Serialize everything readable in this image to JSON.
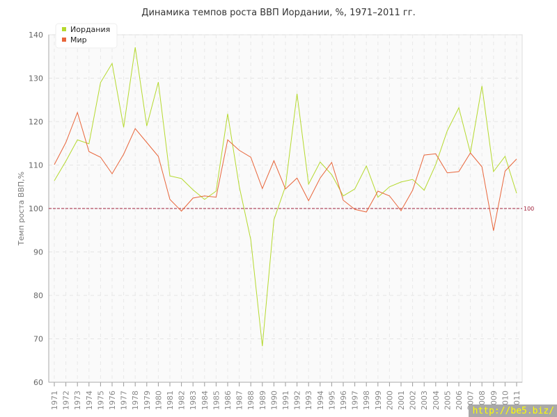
{
  "chart_data": {
    "type": "line",
    "title": "Динамика темпов роста ВВП Иордании, %, 1971–2011 гг.",
    "xlabel": "",
    "ylabel": "Темп роста ВВП,%",
    "ylim": [
      60,
      140
    ],
    "yticks": [
      60,
      70,
      80,
      90,
      100,
      110,
      120,
      130,
      140
    ],
    "grid": true,
    "legend": "top-left",
    "x": [
      1971,
      1972,
      1973,
      1974,
      1975,
      1976,
      1977,
      1978,
      1979,
      1980,
      1981,
      1982,
      1983,
      1984,
      1985,
      1986,
      1987,
      1988,
      1989,
      1990,
      1991,
      1992,
      1993,
      1994,
      1995,
      1996,
      1997,
      1998,
      1999,
      2000,
      2001,
      2002,
      2003,
      2004,
      2005,
      2006,
      2007,
      2008,
      2009,
      2010,
      2011
    ],
    "series": [
      {
        "name": "Иордания",
        "color": "#b5d92e",
        "values": [
          106.4,
          110.9,
          115.8,
          114.9,
          129,
          133.4,
          118.7,
          137.1,
          119,
          129.1,
          107.5,
          106.9,
          104.3,
          102.1,
          104,
          121.8,
          105.1,
          92.8,
          68.3,
          97.4,
          105.1,
          126.4,
          105.6,
          110.7,
          107.8,
          102.9,
          104.5,
          109.8,
          102.6,
          105,
          106.1,
          106.7,
          104.2,
          110.1,
          117.9,
          123.2,
          112.8,
          128.2,
          108.5,
          112,
          103.5
        ]
      },
      {
        "name": "Мир",
        "color": "#e8653a",
        "values": [
          110.1,
          115.2,
          122.1,
          113.1,
          111.8,
          108,
          112.5,
          118.4,
          115.2,
          112,
          102.1,
          99.4,
          102.4,
          102.9,
          102.6,
          115.8,
          113.4,
          111.8,
          104.6,
          111,
          104.5,
          107,
          101.8,
          107,
          110.6,
          101.9,
          99.8,
          99.2,
          104,
          102.9,
          99.5,
          104.2,
          112.3,
          112.6,
          108.2,
          108.5,
          112.8,
          109.6,
          94.9,
          108.6,
          111.4
        ]
      }
    ],
    "annotations": [
      {
        "type": "hline",
        "value": 100,
        "label": "100",
        "color": "#a0203a"
      }
    ]
  },
  "watermark": "http://be5.biz/"
}
